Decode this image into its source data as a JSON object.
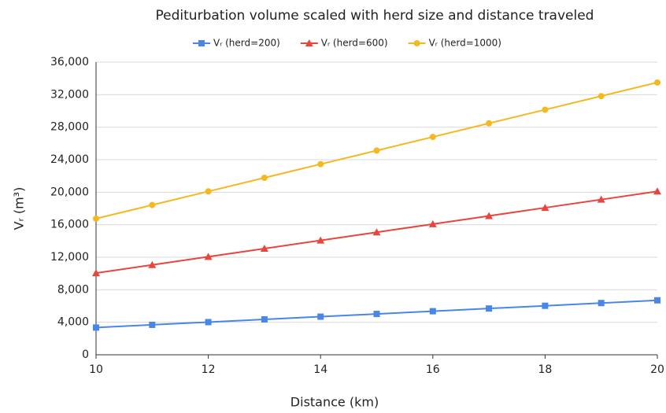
{
  "chart_data": {
    "type": "line",
    "title": "Pediturbation volume scaled with herd size and distance traveled",
    "x_label": "Distance (km)",
    "y_label": "Vᵣ (m³)",
    "x": [
      10,
      11,
      12,
      13,
      14,
      15,
      16,
      17,
      18,
      19,
      20
    ],
    "xlim": [
      10,
      20
    ],
    "xticks": [
      10,
      12,
      14,
      16,
      18,
      20
    ],
    "ylim": [
      0,
      36000
    ],
    "yticks": [
      0,
      {
        "value": 4000,
        "label": "4,000"
      },
      {
        "value": 8000,
        "label": "8,000"
      },
      {
        "value": 12000,
        "label": "12,000"
      },
      {
        "value": 16000,
        "label": "16,000"
      },
      {
        "value": 20000,
        "label": "20,000"
      },
      {
        "value": 24000,
        "label": "24,000"
      },
      {
        "value": 28000,
        "label": "28,000"
      },
      {
        "value": 32000,
        "label": "32,000"
      },
      {
        "value": 36000,
        "label": "36,000"
      }
    ],
    "grid": true,
    "legend": "top",
    "series": [
      {
        "name": "Vᵣ (herd=200)",
        "color": "#4a86e8",
        "marker": "square",
        "values": [
          3350,
          3685,
          4020,
          4355,
          4690,
          5025,
          5360,
          5695,
          6030,
          6365,
          6700
        ]
      },
      {
        "name": "Vᵣ (herd=600)",
        "color": "#e8453c",
        "marker": "triangle",
        "values": [
          10050,
          11055,
          12060,
          13065,
          14070,
          15075,
          16080,
          17085,
          18090,
          19095,
          20100
        ]
      },
      {
        "name": "Vᵣ (herd=1000)",
        "color": "#f5b820",
        "marker": "circle",
        "values": [
          16750,
          18425,
          20100,
          21775,
          23450,
          25125,
          26800,
          28475,
          30150,
          31825,
          33500
        ]
      }
    ]
  }
}
